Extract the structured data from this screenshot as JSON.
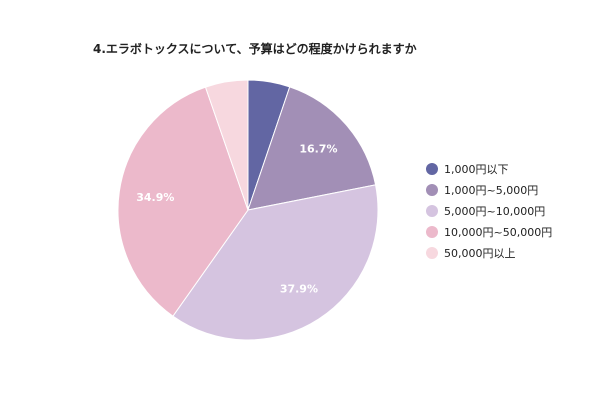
{
  "chart_data": {
    "type": "pie",
    "title": "4.エラボトックスについて、予算はどの程度かけられますか",
    "categories": [
      "1,000円以下",
      "1,000円~5,000円",
      "5,000円~10,000円",
      "10,000円~50,000円",
      "50,000円以上"
    ],
    "values": [
      5.2,
      16.7,
      37.9,
      34.9,
      5.3
    ],
    "data_labels": [
      "",
      "16.7%",
      "37.9%",
      "34.9%",
      ""
    ],
    "colors": [
      "#6266a3",
      "#a28fb6",
      "#d5c4e0",
      "#ecb9cb",
      "#f7d8df"
    ],
    "legend_position": "right",
    "start_angle": "top",
    "direction": "clockwise"
  }
}
